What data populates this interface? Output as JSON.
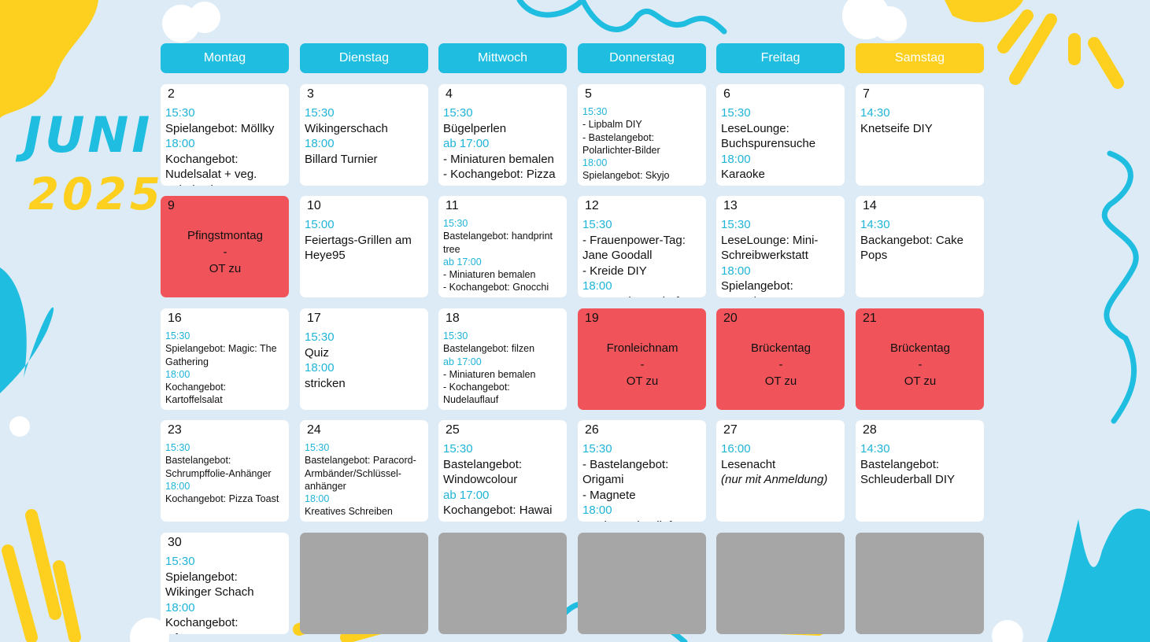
{
  "title": {
    "month": "JUNI",
    "year": "2025"
  },
  "weekdays": [
    "Montag",
    "Dienstag",
    "Mittwoch",
    "Donnerstag",
    "Freitag",
    "Samstag"
  ],
  "weeks": [
    [
      {
        "day": "2",
        "lines": [
          "15:30",
          "Spielangebot: Möllky",
          "18:00",
          "Kochangebot: Nudelsalat + veg. Schnitzel"
        ]
      },
      {
        "day": "3",
        "lines": [
          "15:30",
          "Wikingerschach",
          "18:00",
          "Billard Turnier"
        ]
      },
      {
        "day": "4",
        "lines": [
          "15:30",
          "Bügelperlen",
          "ab 17:00",
          "- Miniaturen bemalen",
          "- Kochangebot: Pizza"
        ]
      },
      {
        "day": "5",
        "lines": [
          "15:30",
          "- Lipbalm DIY",
          "- Bastelangebot: Polarlichter-Bilder",
          "18:00",
          "Spielangebot: Skyjo"
        ]
      },
      {
        "day": "6",
        "lines": [
          "15:30",
          "LeseLounge: Buchspurensuche",
          "18:00",
          "Karaoke"
        ]
      },
      {
        "day": "7",
        "lines": [
          "14:30",
          "Knetseife DIY"
        ]
      }
    ],
    [
      {
        "day": "9",
        "closed": true,
        "lines": [
          "Pfingstmontag",
          "-",
          "OT zu"
        ]
      },
      {
        "day": "10",
        "lines": [
          "15:00",
          "Feiertags-Grillen am Heye95"
        ]
      },
      {
        "day": "11",
        "lines": [
          "15:30",
          "Bastelangebot: handprint tree",
          "ab 17:00",
          "- Miniaturen bemalen",
          "- Kochangebot: Gnocchi"
        ]
      },
      {
        "day": "12",
        "lines": [
          "15:30",
          "- Frauenpower-Tag: Jane Goodall",
          "- Kreide DIY",
          "18:00",
          "UNO Meisterschaft"
        ]
      },
      {
        "day": "13",
        "lines": [
          "15:30",
          "LeseLounge: Mini-Schreibwerkstatt",
          "18:00",
          "Spielangebot: Mausritter"
        ]
      },
      {
        "day": "14",
        "lines": [
          "14:30",
          "Backangebot: Cake Pops"
        ]
      }
    ],
    [
      {
        "day": "16",
        "lines": [
          "15:30",
          "Spielangebot: Magic: The Gathering",
          "18:00",
          "Kochangebot: Kartoffelsalat"
        ]
      },
      {
        "day": "17",
        "lines": [
          "15:30",
          "Quiz",
          "18:00",
          "stricken"
        ]
      },
      {
        "day": "18",
        "lines": [
          "15:30",
          "Bastelangebot: filzen",
          "ab 17:00",
          "- Miniaturen bemalen",
          "- Kochangebot: Nudelauflauf"
        ]
      },
      {
        "day": "19",
        "closed": true,
        "lines": [
          "Fronleichnam",
          "-",
          "OT zu"
        ]
      },
      {
        "day": "20",
        "closed": true,
        "lines": [
          "Brückentag",
          "-",
          "OT zu"
        ]
      },
      {
        "day": "21",
        "closed": true,
        "lines": [
          "Brückentag",
          "-",
          "OT zu"
        ]
      }
    ],
    [
      {
        "day": "23",
        "lines": [
          "15:30",
          "Bastelangebot: Schrumpffolie-Anhänger",
          "18:00",
          "Kochangebot: Pizza Toast"
        ]
      },
      {
        "day": "24",
        "lines": [
          "15:30",
          "Bastelangebot: Paracord-Armbänder/Schlüssel-anhänger",
          "18:00",
          "Kreatives Schreiben"
        ]
      },
      {
        "day": "25",
        "lines": [
          "15:30",
          "Bastelangebot: Windowcolour",
          "ab 17:00",
          "Kochangebot: Hawai Toast"
        ]
      },
      {
        "day": "26",
        "lines": [
          "15:30",
          "- Bastelangebot: Origami",
          "- Magnete",
          "18:00",
          "Stadt Land Vollpfosten"
        ]
      },
      {
        "day": "27",
        "lines": [
          "16:00",
          "Lesenacht",
          "(nur mit Anmeldung)"
        ]
      },
      {
        "day": "28",
        "lines": [
          "14:30",
          "Bastelangebot: Schleuderball DIY"
        ]
      }
    ],
    [
      {
        "day": "30",
        "lines": [
          "15:30",
          "Spielangebot: Wikinger Schach",
          "18:00",
          "Kochangebot: Ofengemüse"
        ]
      },
      null,
      null,
      null,
      null,
      null
    ]
  ]
}
